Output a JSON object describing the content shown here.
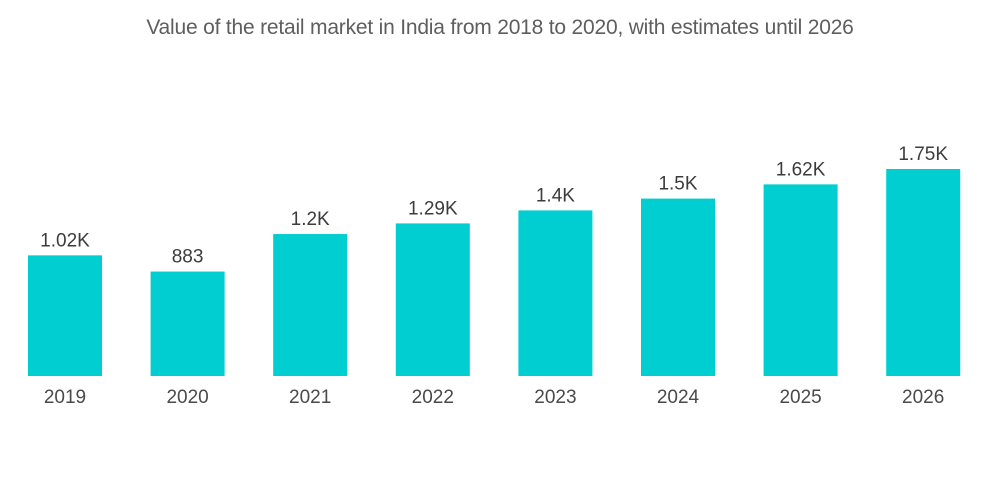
{
  "chart_data": {
    "type": "bar",
    "title": "Value of the retail market in India from 2018 to 2020, with estimates until 2026",
    "xlabel": "",
    "ylabel": "",
    "categories": [
      "2019",
      "2020",
      "2021",
      "2022",
      "2023",
      "2024",
      "2025",
      "2026"
    ],
    "values": [
      1020,
      883,
      1200,
      1290,
      1400,
      1500,
      1620,
      1750
    ],
    "data_labels": [
      "1.02K",
      "883",
      "1.2K",
      "1.29K",
      "1.4K",
      "1.5K",
      "1.62K",
      "1.75K"
    ],
    "ylim": [
      0,
      1750
    ],
    "grid": false,
    "legend": "none",
    "bar_color": "#00ced1"
  }
}
